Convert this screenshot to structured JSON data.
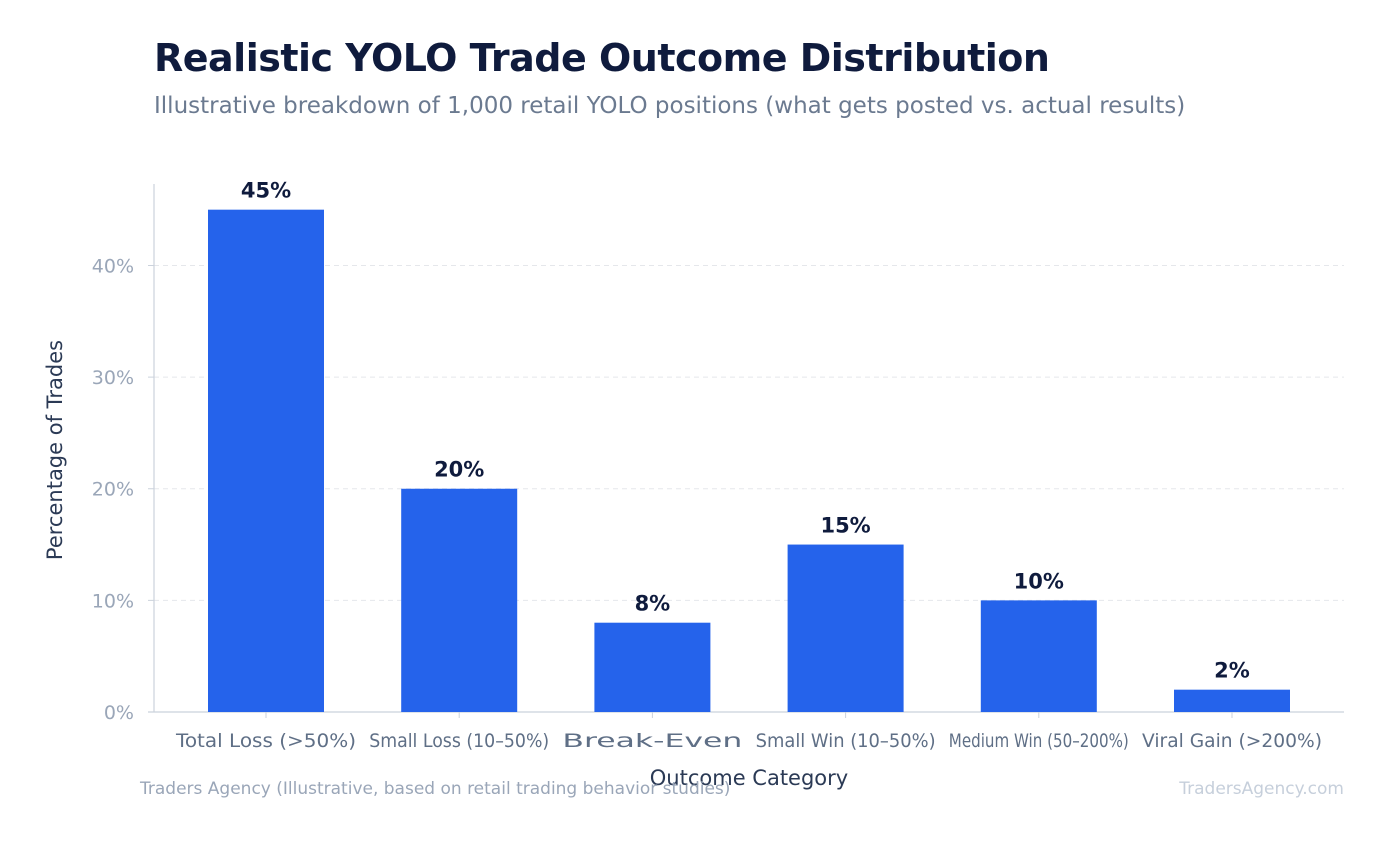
{
  "header": {
    "title": "Realistic YOLO Trade Outcome Distribution",
    "subtitle": "Illustrative breakdown of 1,000 retail YOLO positions (what gets posted vs. actual results)"
  },
  "footer": {
    "source": "Traders Agency (Illustrative, based on retail trading behavior studies)",
    "brand": "TradersAgency.com"
  },
  "colors": {
    "bar": "#2563eb",
    "title": "#0f1b3d",
    "axis_text": "#9aa6b8",
    "category_text": "#5f6f86",
    "axis_title": "#2b3a55",
    "grid": "#e5e7eb"
  },
  "chart_data": {
    "type": "bar",
    "title": "Realistic YOLO Trade Outcome Distribution",
    "subtitle": "Illustrative breakdown of 1,000 retail YOLO positions (what gets posted vs. actual results)",
    "xlabel": "Outcome Category",
    "ylabel": "Percentage of Trades",
    "categories": [
      "Total Loss (>50%)",
      "Small Loss (10–50%)",
      "Break-Even",
      "Small Win (10–50%)",
      "Medium Win (50–200%)",
      "Viral Gain (>200%)"
    ],
    "values": [
      45,
      20,
      8,
      15,
      10,
      2
    ],
    "data_labels": [
      "45%",
      "20%",
      "8%",
      "15%",
      "10%",
      "2%"
    ],
    "yticks": [
      0,
      10,
      20,
      30,
      40
    ],
    "ytick_labels": [
      "0%",
      "10%",
      "20%",
      "30%",
      "40%"
    ],
    "ylim": [
      0,
      47.3
    ],
    "grid": true,
    "legend": "none"
  }
}
